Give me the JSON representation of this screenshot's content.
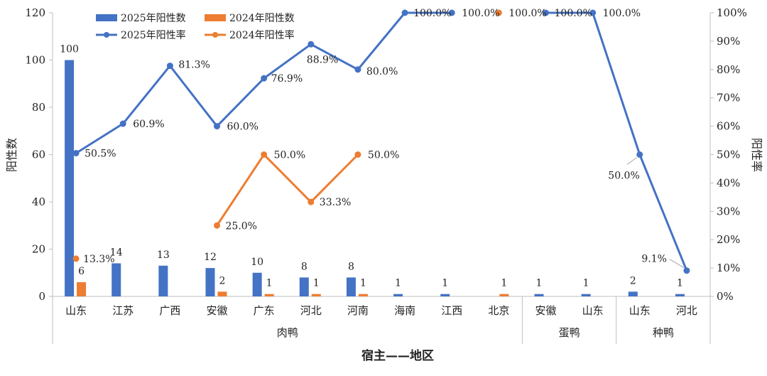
{
  "chart_data": {
    "type": "bar",
    "categories": [
      "山东",
      "江苏",
      "广西",
      "安徽",
      "广东",
      "河北",
      "河南",
      "海南",
      "江西",
      "北京",
      "安徽",
      "山东",
      "山东",
      "河北"
    ],
    "groups": [
      {
        "name": "肉鸭",
        "span": [
          0,
          9
        ]
      },
      {
        "name": "蛋鸭",
        "span": [
          10,
          11
        ]
      },
      {
        "name": "种鸭",
        "span": [
          12,
          13
        ]
      }
    ],
    "series": [
      {
        "name": "2025年阳性数",
        "kind": "bar",
        "axis": "left",
        "color": "#4472C4",
        "values": [
          100,
          14,
          13,
          12,
          10,
          8,
          8,
          1,
          1,
          null,
          1,
          1,
          2,
          1
        ]
      },
      {
        "name": "2024年阳性数",
        "kind": "bar",
        "axis": "left",
        "color": "#ED7D31",
        "values": [
          6,
          null,
          null,
          2,
          1,
          1,
          1,
          null,
          null,
          1,
          null,
          null,
          null,
          null
        ]
      },
      {
        "name": "2025年阳性率",
        "kind": "line",
        "axis": "right",
        "color": "#4472C4",
        "values": [
          50.5,
          60.9,
          81.3,
          60.0,
          76.9,
          88.9,
          80.0,
          100.0,
          100.0,
          null,
          100.0,
          100.0,
          50.0,
          9.1
        ]
      },
      {
        "name": "2024年阳性率",
        "kind": "line",
        "axis": "right",
        "color": "#ED7D31",
        "values": [
          13.3,
          null,
          null,
          25.0,
          50.0,
          33.3,
          50.0,
          null,
          null,
          100.0,
          null,
          null,
          null,
          null
        ]
      }
    ],
    "bar_labels_2025": [
      "100",
      "14",
      "13",
      "12",
      "10",
      "8",
      "8",
      "1",
      "1",
      "",
      "1",
      "1",
      "2",
      "1"
    ],
    "bar_labels_2024": [
      "6",
      "",
      "",
      "2",
      "1",
      "1",
      "1",
      "",
      "",
      "1",
      "",
      "",
      "",
      ""
    ],
    "rate_labels_2025": [
      "50.5%",
      "60.9%",
      "81.3%",
      "60.0%",
      "76.9%",
      "88.9%",
      "80.0%",
      "100.0%",
      "100.0%",
      "",
      "100.0%",
      "100.0%",
      "50.0%",
      "9.1%"
    ],
    "rate_labels_2024": [
      "13.3%",
      "",
      "",
      "25.0%",
      "50.0%",
      "33.3%",
      "50.0%",
      "",
      "",
      "100.0%",
      "",
      "",
      "",
      ""
    ],
    "ylabel": "阳性数",
    "y2label": "阳性率",
    "xlabel": "宿主——地区",
    "ylim": [
      0,
      120
    ],
    "y2lim": [
      0,
      100
    ],
    "yticks": [
      "0",
      "20",
      "40",
      "60",
      "80",
      "100",
      "120"
    ],
    "y2ticks": [
      "0%",
      "10%",
      "20%",
      "30%",
      "40%",
      "50%",
      "60%",
      "70%",
      "80%",
      "90%",
      "100%"
    ],
    "legend_position": "top-left",
    "grid": false
  }
}
